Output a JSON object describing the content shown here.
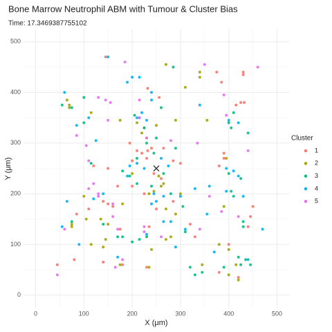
{
  "chart_data": {
    "type": "scatter",
    "title": "Bone Marrow Neutrophil ABM with Tumour & Cluster Bias",
    "subtitle": "Time: 17.3469387755102",
    "x_label": "X (μm)",
    "y_label": "Y (μm)",
    "legend_title": "Cluster",
    "legend": "right",
    "xlim": [
      -25,
      525
    ],
    "ylim": [
      -25,
      525
    ],
    "xticks": [
      0,
      100,
      200,
      300,
      400,
      500
    ],
    "yticks": [
      0,
      100,
      200,
      300,
      400,
      500
    ],
    "grid": true,
    "minor_grid": true,
    "marker": {
      "x": 250,
      "y": 250
    },
    "series": [
      {
        "name": "1",
        "color": "#F8766D",
        "x": [
          145,
          232,
          256,
          375,
          385,
          430,
          430,
          425,
          432,
          415,
          195,
          210,
          232,
          240,
          220,
          265,
          200,
          230,
          285,
          245,
          260,
          225,
          200,
          170,
          285,
          140,
          150,
          160,
          110,
          85,
          175,
          235,
          330,
          400,
          80,
          45,
          140,
          180,
          230,
          380,
          420,
          450,
          445,
          440,
          390,
          390,
          380,
          300,
          250,
          320,
          120,
          150
        ],
        "values": [
          470,
          408,
          390,
          440,
          420,
          440,
          435,
          380,
          380,
          375,
          300,
          285,
          285,
          290,
          280,
          290,
          265,
          270,
          265,
          240,
          230,
          200,
          215,
          215,
          185,
          185,
          180,
          175,
          170,
          160,
          130,
          135,
          115,
          100,
          70,
          60,
          65,
          60,
          55,
          45,
          35,
          175,
          155,
          135,
          280,
          270,
          255,
          260,
          170,
          140,
          255,
          250
        ]
      },
      {
        "name": "2",
        "color": "#A3A500",
        "x": [
          270,
          340,
          340,
          310,
          355,
          290,
          250,
          225,
          220,
          175,
          230,
          70,
          70,
          115,
          210,
          245,
          235,
          265,
          200,
          255,
          260,
          270,
          290,
          280,
          270,
          115,
          140,
          145,
          240,
          105,
          135,
          75,
          75,
          175,
          235,
          400,
          415,
          380,
          345,
          400,
          420,
          180,
          150,
          300,
          390,
          395,
          100,
          65
        ],
        "values": [
          455,
          440,
          430,
          410,
          345,
          345,
          335,
          330,
          320,
          345,
          310,
          370,
          375,
          360,
          340,
          205,
          200,
          220,
          240,
          235,
          215,
          170,
          160,
          115,
          110,
          100,
          95,
          110,
          90,
          150,
          150,
          135,
          140,
          60,
          55,
          90,
          60,
          100,
          60,
          40,
          30,
          180,
          140,
          200,
          175,
          270,
          195,
          385
        ]
      },
      {
        "name": "3",
        "color": "#00BF7D",
        "x": [
          55,
          100,
          75,
          285,
          215,
          205,
          260,
          225,
          250,
          230,
          245,
          210,
          290,
          195,
          180,
          210,
          240,
          140,
          115,
          180,
          215,
          230,
          200,
          310,
          320,
          345,
          330,
          390,
          425,
          435,
          420,
          445,
          430,
          430,
          400,
          405,
          410,
          425,
          75,
          100,
          410,
          400,
          405,
          440,
          170,
          305,
          280,
          265
        ],
        "values": [
          375,
          390,
          370,
          450,
          350,
          355,
          370,
          330,
          310,
          300,
          280,
          270,
          290,
          235,
          245,
          220,
          215,
          140,
          260,
          115,
          110,
          115,
          105,
          125,
          55,
          45,
          40,
          55,
          60,
          70,
          75,
          60,
          145,
          135,
          240,
          205,
          195,
          230,
          145,
          340,
          360,
          340,
          330,
          320,
          115,
          175,
          200,
          240
        ]
      },
      {
        "name": "4",
        "color": "#00B0F6",
        "x": [
          60,
          150,
          215,
          240,
          210,
          230,
          220,
          240,
          200,
          190,
          125,
          85,
          110,
          340,
          400,
          420,
          395,
          410,
          420,
          395,
          430,
          195,
          190,
          210,
          225,
          275,
          260,
          240,
          250,
          265,
          300,
          330,
          360,
          355,
          265,
          280,
          310,
          230,
          140,
          120,
          65,
          55,
          90,
          170,
          370,
          440,
          470,
          290,
          245
        ],
        "values": [
          400,
          470,
          430,
          385,
          350,
          345,
          360,
          400,
          430,
          420,
          305,
          335,
          350,
          375,
          345,
          340,
          250,
          245,
          235,
          205,
          195,
          255,
          235,
          260,
          250,
          255,
          270,
          180,
          185,
          195,
          195,
          210,
          215,
          160,
          145,
          145,
          130,
          120,
          200,
          190,
          185,
          135,
          100,
          75,
          85,
          70,
          130,
          95,
          200
        ]
      },
      {
        "name": "5",
        "color": "#E76BF3",
        "x": [
          185,
          460,
          350,
          130,
          145,
          155,
          390,
          395,
          85,
          105,
          110,
          150,
          215,
          215,
          230,
          280,
          335,
          440,
          110,
          120,
          130,
          160,
          160,
          170,
          225,
          225,
          260,
          360,
          385,
          420,
          60,
          45,
          180,
          165,
          340,
          130
        ],
        "values": [
          460,
          450,
          455,
          390,
          385,
          380,
          395,
          355,
          315,
          295,
          265,
          345,
          385,
          350,
          310,
          305,
          300,
          285,
          210,
          220,
          195,
          180,
          155,
          130,
          135,
          125,
          115,
          195,
          165,
          155,
          130,
          40,
          70,
          55,
          130,
          200
        ]
      }
    ]
  }
}
